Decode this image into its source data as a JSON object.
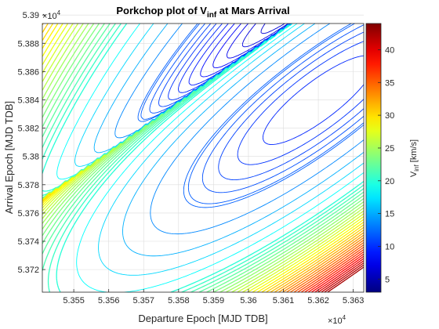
{
  "chart_data": {
    "type": "contour",
    "title": {
      "main": "Porkchop plot of V",
      "sub": "inf",
      "tail": " at Mars Arrival"
    },
    "xlabel": "Departure Epoch [MJD TDB]",
    "ylabel": "Arrival Epoch [MJD TDB]",
    "x_multiplier": {
      "base": "×10",
      "exp": "4"
    },
    "y_multiplier": {
      "base": "×10",
      "exp": "4"
    },
    "xlim": [
      5.3541,
      5.3633
    ],
    "ylim": [
      5.3704,
      5.3894
    ],
    "x_ticks": [
      {
        "v": 5.355,
        "label": "5.355"
      },
      {
        "v": 5.356,
        "label": "5.356"
      },
      {
        "v": 5.357,
        "label": "5.357"
      },
      {
        "v": 5.358,
        "label": "5.358"
      },
      {
        "v": 5.359,
        "label": "5.359"
      },
      {
        "v": 5.36,
        "label": "5.36"
      },
      {
        "v": 5.361,
        "label": "5.361"
      },
      {
        "v": 5.362,
        "label": "5.362"
      },
      {
        "v": 5.363,
        "label": "5.363"
      }
    ],
    "y_ticks": [
      {
        "v": 5.372,
        "label": "5.372"
      },
      {
        "v": 5.374,
        "label": "5.374"
      },
      {
        "v": 5.376,
        "label": "5.376"
      },
      {
        "v": 5.378,
        "label": "5.378"
      },
      {
        "v": 5.38,
        "label": "5.38"
      },
      {
        "v": 5.382,
        "label": "5.382"
      },
      {
        "v": 5.384,
        "label": "5.384"
      },
      {
        "v": 5.386,
        "label": "5.386"
      },
      {
        "v": 5.388,
        "label": "5.388"
      },
      {
        "v": 5.39,
        "label": "5.39"
      }
    ],
    "colorbar": {
      "label_main": "V",
      "label_sub": "inf",
      "label_tail": " [km/s]",
      "range": [
        3,
        44
      ],
      "ticks": [
        {
          "v": 5,
          "label": "5"
        },
        {
          "v": 10,
          "label": "10"
        },
        {
          "v": 15,
          "label": "15"
        },
        {
          "v": 20,
          "label": "20"
        },
        {
          "v": 25,
          "label": "25"
        },
        {
          "v": 30,
          "label": "30"
        },
        {
          "v": 35,
          "label": "35"
        },
        {
          "v": 40,
          "label": "40"
        }
      ],
      "colormap": "jet"
    },
    "grid": true,
    "singular_ridge": [
      [
        5.3541,
        5.377
      ],
      [
        5.3612,
        5.3894
      ]
    ]
  }
}
